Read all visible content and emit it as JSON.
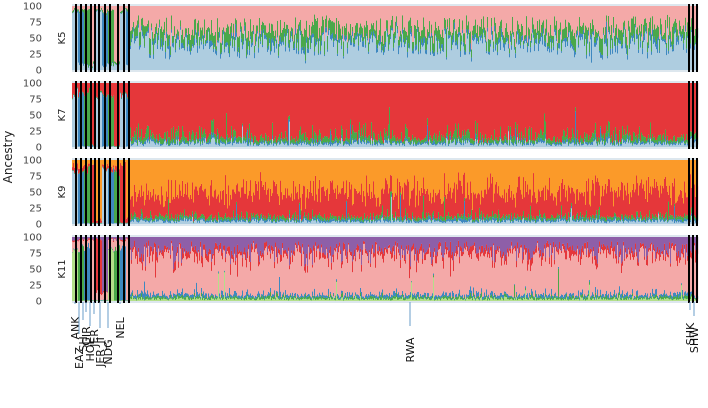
{
  "chart_data": {
    "type": "stacked-bar",
    "description": "ADMIXTURE-style ancestry proportions per individual, grouped by population, for K=5, 7, 9 and 11",
    "ylabel": "Ancestry",
    "ylim": [
      0,
      100
    ],
    "yticks": [
      0,
      25,
      50,
      75,
      100
    ],
    "grid": false,
    "legend": "none",
    "panels": [
      {
        "label": "K5",
        "components": [
          {
            "color": "#aecde0",
            "base": 42
          },
          {
            "color": "#3e88c0",
            "base": 6
          },
          {
            "color": "#4aa84a",
            "base": 16
          },
          {
            "color": "#f4a9a8",
            "base": 36
          }
        ]
      },
      {
        "label": "K7",
        "components": [
          {
            "color": "#aecde0",
            "base": 5
          },
          {
            "color": "#3e88c0",
            "base": 3
          },
          {
            "color": "#4aa84a",
            "base": 8
          },
          {
            "color": "#e5373a",
            "base": 84
          }
        ]
      },
      {
        "label": "K9",
        "components": [
          {
            "color": "#aecde0",
            "base": 4
          },
          {
            "color": "#3e88c0",
            "base": 3
          },
          {
            "color": "#4aa84a",
            "base": 5
          },
          {
            "color": "#e5373a",
            "base": 38
          },
          {
            "color": "#fb9a29",
            "base": 50
          }
        ]
      },
      {
        "label": "K11",
        "components": [
          {
            "color": "#b4df8a",
            "base": 3
          },
          {
            "color": "#4aa84a",
            "base": 3
          },
          {
            "color": "#3e88c0",
            "base": 4
          },
          {
            "color": "#f4a9a8",
            "base": 62
          },
          {
            "color": "#e5373a",
            "base": 8
          },
          {
            "color": "#8e5fa8",
            "base": 20
          }
        ]
      }
    ],
    "populations": [
      "ANK",
      "EAZ",
      "SH",
      "GIR",
      "HOL",
      "JER",
      "JER_JI",
      "NDG",
      "NEL",
      "RWA",
      "SHK",
      "SHW"
    ]
  }
}
